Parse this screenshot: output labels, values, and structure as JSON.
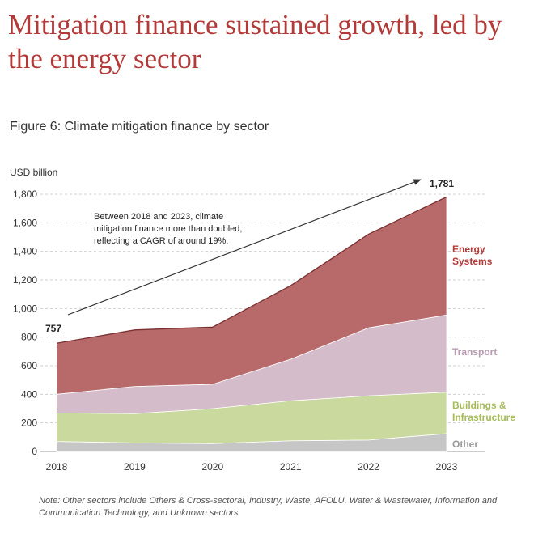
{
  "headline": "Mitigation finance sustained growth, led by the energy sector",
  "figure_title": "Figure 6: Climate mitigation finance by sector",
  "note": "Note: Other sectors include Others & Cross-sectoral, Industry, Waste, AFOLU, Water & Wastewater, Information and Communication Technology, and Unknown sectors.",
  "colors": {
    "other": "#c6c6c6",
    "buildings": "#cad99e",
    "transport": "#d4bccb",
    "energy": "#b86a6a",
    "top_line": "#7a2f30",
    "buildings_label": "#a6bc5a",
    "transport_label": "#b79ab0",
    "energy_label": "#b23a38",
    "other_label": "#9a9a9a"
  },
  "chart_data": {
    "type": "area",
    "stacked": true,
    "x": [
      "2018",
      "2019",
      "2020",
      "2021",
      "2022",
      "2023"
    ],
    "ylabel": "USD billion",
    "ylim": [
      0,
      1800
    ],
    "yticks": [
      "0",
      "200",
      "400",
      "600",
      "800",
      "1,000",
      "1,200",
      "1,400",
      "1,600",
      "1,800"
    ],
    "grid": "horizontal dashed",
    "series": [
      {
        "key": "other",
        "name": "Other",
        "values": [
          70,
          60,
          55,
          75,
          80,
          125
        ]
      },
      {
        "key": "buildings",
        "name": "Buildings & Infrastructure",
        "values": [
          200,
          205,
          245,
          280,
          310,
          290
        ]
      },
      {
        "key": "transport",
        "name": "Transport",
        "values": [
          130,
          190,
          170,
          290,
          475,
          540
        ]
      },
      {
        "key": "energy",
        "name": "Energy Systems",
        "values": [
          357,
          395,
          400,
          515,
          655,
          826
        ]
      }
    ],
    "labels": {
      "start_total": "757",
      "end_total": "1,781",
      "annotation": [
        "Between 2018 and 2023, climate",
        "mitigation finance more than doubled,",
        "reflecting a CAGR of around 19%."
      ],
      "energy": [
        "Energy",
        "Systems"
      ],
      "transport": [
        "Transport"
      ],
      "buildings": [
        "Buildings &",
        "Infrastructure"
      ],
      "other": [
        "Other"
      ]
    }
  }
}
